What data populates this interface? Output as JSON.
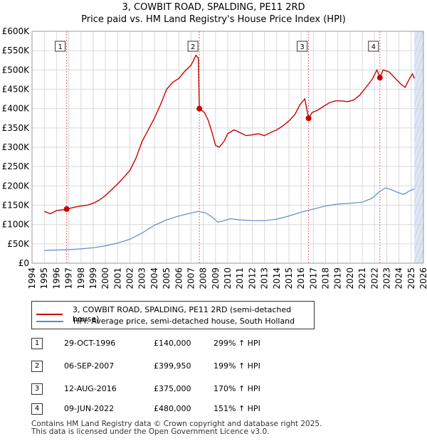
{
  "title_line1": "3, COWBIT ROAD, SPALDING, PE11 2RD",
  "title_line2": "Price paid vs. HM Land Registry's House Price Index (HPI)",
  "chart_data": {
    "type": "line",
    "xlim": [
      1994,
      2026
    ],
    "ylim": [
      0,
      600000
    ],
    "x_ticks": [
      1994,
      1995,
      1996,
      1997,
      1998,
      1999,
      2000,
      2001,
      2002,
      2003,
      2004,
      2005,
      2006,
      2007,
      2008,
      2009,
      2010,
      2011,
      2012,
      2013,
      2014,
      2015,
      2016,
      2017,
      2018,
      2019,
      2020,
      2021,
      2022,
      2023,
      2024,
      2025,
      2026
    ],
    "y_ticks": [
      0,
      50000,
      100000,
      150000,
      200000,
      250000,
      300000,
      350000,
      400000,
      450000,
      500000,
      550000,
      600000
    ],
    "y_tick_labels": [
      "£0",
      "£50K",
      "£100K",
      "£150K",
      "£200K",
      "£250K",
      "£300K",
      "£350K",
      "£400K",
      "£450K",
      "£500K",
      "£550K",
      "£600K"
    ],
    "data_start": 1995,
    "data_end": 2025.25,
    "colors": {
      "price": "#cc0000",
      "hpi": "#5b8ac7",
      "shade": "#dde6f3",
      "grid": "#d9d9d9",
      "marker_line": "#e06666"
    },
    "series": [
      {
        "name": "3, COWBIT ROAD, SPALDING, PE11 2RD (semi-detached house)",
        "key": "price",
        "points": [
          [
            1995,
            134000
          ],
          [
            1995.5,
            128000
          ],
          [
            1996,
            136000
          ],
          [
            1996.5,
            138000
          ],
          [
            1996.83,
            140000
          ],
          [
            1997.5,
            145000
          ],
          [
            1998,
            148000
          ],
          [
            1998.5,
            150000
          ],
          [
            1999,
            155000
          ],
          [
            1999.5,
            163000
          ],
          [
            2000,
            175000
          ],
          [
            2000.5,
            190000
          ],
          [
            2001,
            205000
          ],
          [
            2001.5,
            222000
          ],
          [
            2002,
            240000
          ],
          [
            2002.5,
            272000
          ],
          [
            2003,
            315000
          ],
          [
            2003.5,
            345000
          ],
          [
            2004,
            375000
          ],
          [
            2004.5,
            410000
          ],
          [
            2005,
            450000
          ],
          [
            2005.5,
            468000
          ],
          [
            2006,
            478000
          ],
          [
            2006.5,
            497000
          ],
          [
            2007,
            512000
          ],
          [
            2007.4,
            538000
          ],
          [
            2007.6,
            530000
          ],
          [
            2007.68,
            399950
          ],
          [
            2008.1,
            390000
          ],
          [
            2008.4,
            370000
          ],
          [
            2008.7,
            340000
          ],
          [
            2009,
            305000
          ],
          [
            2009.3,
            300000
          ],
          [
            2009.7,
            315000
          ],
          [
            2010,
            335000
          ],
          [
            2010.5,
            345000
          ],
          [
            2011,
            338000
          ],
          [
            2011.5,
            330000
          ],
          [
            2012,
            332000
          ],
          [
            2012.5,
            335000
          ],
          [
            2013,
            330000
          ],
          [
            2013.5,
            338000
          ],
          [
            2014,
            345000
          ],
          [
            2014.5,
            355000
          ],
          [
            2015,
            368000
          ],
          [
            2015.5,
            385000
          ],
          [
            2015.9,
            410000
          ],
          [
            2016.3,
            425000
          ],
          [
            2016.61,
            375000
          ],
          [
            2016.9,
            390000
          ],
          [
            2017.3,
            395000
          ],
          [
            2017.8,
            405000
          ],
          [
            2018.3,
            415000
          ],
          [
            2018.8,
            420000
          ],
          [
            2019.3,
            420000
          ],
          [
            2019.8,
            418000
          ],
          [
            2020.3,
            422000
          ],
          [
            2020.8,
            435000
          ],
          [
            2021.3,
            455000
          ],
          [
            2021.8,
            475000
          ],
          [
            2022.2,
            500000
          ],
          [
            2022.44,
            480000
          ],
          [
            2022.7,
            500000
          ],
          [
            2023.2,
            495000
          ],
          [
            2023.7,
            478000
          ],
          [
            2024.2,
            462000
          ],
          [
            2024.5,
            455000
          ],
          [
            2024.9,
            480000
          ],
          [
            2025.1,
            490000
          ],
          [
            2025.25,
            478000
          ]
        ]
      },
      {
        "name": "HPI: Average price, semi-detached house, South Holland",
        "key": "hpi",
        "points": [
          [
            1995,
            33000
          ],
          [
            1996,
            34000
          ],
          [
            1997,
            35000
          ],
          [
            1998,
            37000
          ],
          [
            1999,
            40000
          ],
          [
            2000,
            45000
          ],
          [
            2001,
            52000
          ],
          [
            2002,
            62000
          ],
          [
            2003,
            78000
          ],
          [
            2004,
            98000
          ],
          [
            2005,
            112000
          ],
          [
            2006,
            122000
          ],
          [
            2007,
            130000
          ],
          [
            2007.6,
            134000
          ],
          [
            2008.2,
            130000
          ],
          [
            2008.7,
            120000
          ],
          [
            2009.2,
            106000
          ],
          [
            2009.7,
            110000
          ],
          [
            2010.2,
            115000
          ],
          [
            2011,
            112000
          ],
          [
            2012,
            110000
          ],
          [
            2013,
            110000
          ],
          [
            2014,
            114000
          ],
          [
            2015,
            122000
          ],
          [
            2016,
            132000
          ],
          [
            2017,
            140000
          ],
          [
            2018,
            148000
          ],
          [
            2019,
            153000
          ],
          [
            2020,
            155000
          ],
          [
            2021,
            158000
          ],
          [
            2021.8,
            168000
          ],
          [
            2022.4,
            185000
          ],
          [
            2022.9,
            195000
          ],
          [
            2023.4,
            190000
          ],
          [
            2023.9,
            183000
          ],
          [
            2024.4,
            178000
          ],
          [
            2024.9,
            188000
          ],
          [
            2025.25,
            192000
          ]
        ]
      }
    ],
    "sales": [
      {
        "n": "1",
        "x": 1996.83,
        "y": 140000
      },
      {
        "n": "2",
        "x": 2007.68,
        "y": 399950
      },
      {
        "n": "3",
        "x": 2016.61,
        "y": 375000
      },
      {
        "n": "4",
        "x": 2022.44,
        "y": 480000
      }
    ]
  },
  "legend": {
    "price_label": "3, COWBIT ROAD, SPALDING, PE11 2RD (semi-detached house)",
    "hpi_label": "HPI: Average price, semi-detached house, South Holland"
  },
  "sales_table": [
    {
      "n": "1",
      "date": "29-OCT-1996",
      "price": "£140,000",
      "hpi": "299% ↑ HPI"
    },
    {
      "n": "2",
      "date": "06-SEP-2007",
      "price": "£399,950",
      "hpi": "199% ↑ HPI"
    },
    {
      "n": "3",
      "date": "12-AUG-2016",
      "price": "£375,000",
      "hpi": "170% ↑ HPI"
    },
    {
      "n": "4",
      "date": "09-JUN-2022",
      "price": "£480,000",
      "hpi": "151% ↑ HPI"
    }
  ],
  "footer_line1": "Contains HM Land Registry data © Crown copyright and database right 2025.",
  "footer_line2": "This data is licensed under the Open Government Licence v3.0."
}
